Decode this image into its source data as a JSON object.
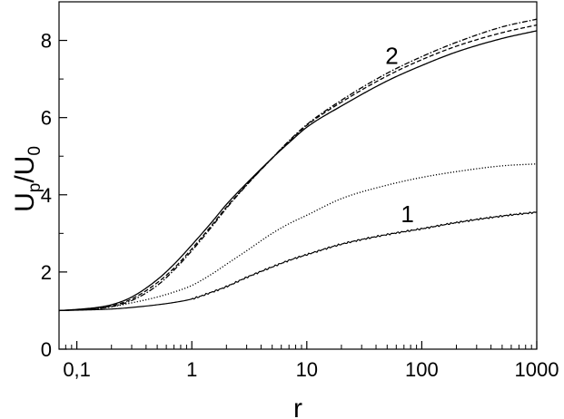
{
  "chart_data": {
    "type": "line",
    "xlabel": "r",
    "ylabel": {
      "main": "U",
      "main_sub": "p",
      "denom": "U",
      "denom_sub": "0"
    },
    "x_scale": "log",
    "xlim": [
      0.07,
      1000
    ],
    "ylim": [
      0,
      9
    ],
    "x_ticks": [
      {
        "value": 0.1,
        "label": "0,1"
      },
      {
        "value": 1,
        "label": "1"
      },
      {
        "value": 10,
        "label": "10"
      },
      {
        "value": 100,
        "label": "100"
      },
      {
        "value": 1000,
        "label": "1000"
      }
    ],
    "y_ticks": [
      {
        "value": 0,
        "label": "0"
      },
      {
        "value": 2,
        "label": "2"
      },
      {
        "value": 4,
        "label": "4"
      },
      {
        "value": 6,
        "label": "6"
      },
      {
        "value": 8,
        "label": "8"
      }
    ],
    "grid": false,
    "legend": "none",
    "annotations": [
      {
        "text": "2",
        "x": 55,
        "y": 7.6
      },
      {
        "text": "1",
        "x": 75,
        "y": 3.5
      }
    ],
    "series": [
      {
        "group": "1",
        "style": "solid",
        "width": 1.2,
        "noise": 0.025,
        "x": [
          0.07,
          0.1,
          0.2,
          0.3,
          0.5,
          0.7,
          1,
          1.5,
          2,
          3,
          5,
          7,
          10,
          20,
          50,
          100,
          200,
          500,
          1000
        ],
        "y": [
          1.0,
          1.01,
          1.04,
          1.08,
          1.15,
          1.21,
          1.3,
          1.48,
          1.62,
          1.86,
          2.13,
          2.3,
          2.45,
          2.72,
          2.97,
          3.12,
          3.28,
          3.45,
          3.55
        ]
      },
      {
        "group": "1",
        "style": "dotted",
        "width": 1.3,
        "noise": 0,
        "x": [
          0.07,
          0.1,
          0.2,
          0.3,
          0.5,
          0.7,
          1,
          1.5,
          2,
          3,
          5,
          7,
          10,
          20,
          50,
          100,
          200,
          500,
          1000
        ],
        "y": [
          1.0,
          1.02,
          1.1,
          1.2,
          1.35,
          1.48,
          1.65,
          1.95,
          2.2,
          2.55,
          3.0,
          3.25,
          3.47,
          3.9,
          4.25,
          4.45,
          4.6,
          4.75,
          4.8
        ]
      },
      {
        "group": "2",
        "style": "solid",
        "width": 1.3,
        "noise": 0,
        "x": [
          0.07,
          0.1,
          0.15,
          0.2,
          0.3,
          0.5,
          0.7,
          1,
          1.5,
          2,
          3,
          5,
          7,
          10,
          20,
          50,
          100,
          200,
          500,
          1000
        ],
        "y": [
          1.0,
          1.03,
          1.08,
          1.15,
          1.35,
          1.8,
          2.2,
          2.7,
          3.3,
          3.75,
          4.3,
          4.95,
          5.35,
          5.75,
          6.3,
          6.95,
          7.35,
          7.7,
          8.05,
          8.25
        ]
      },
      {
        "group": "2",
        "style": "dashed",
        "width": 1.3,
        "noise": 0,
        "x": [
          0.07,
          0.1,
          0.15,
          0.2,
          0.3,
          0.5,
          0.7,
          1,
          1.5,
          2,
          3,
          5,
          7,
          10,
          20,
          50,
          100,
          200,
          500,
          1000
        ],
        "y": [
          1.0,
          1.02,
          1.06,
          1.12,
          1.3,
          1.72,
          2.1,
          2.6,
          3.22,
          3.68,
          4.26,
          4.95,
          5.38,
          5.8,
          6.4,
          7.08,
          7.5,
          7.85,
          8.2,
          8.4
        ]
      },
      {
        "group": "2",
        "style": "dashdot",
        "width": 1.3,
        "noise": 0,
        "x": [
          0.07,
          0.1,
          0.15,
          0.2,
          0.3,
          0.5,
          0.7,
          1,
          1.5,
          2,
          3,
          5,
          7,
          10,
          20,
          50,
          100,
          200,
          500,
          1000
        ],
        "y": [
          1.0,
          1.02,
          1.05,
          1.1,
          1.26,
          1.65,
          2.05,
          2.55,
          3.18,
          3.65,
          4.25,
          4.95,
          5.4,
          5.82,
          6.45,
          7.15,
          7.58,
          7.95,
          8.35,
          8.55
        ]
      }
    ]
  }
}
